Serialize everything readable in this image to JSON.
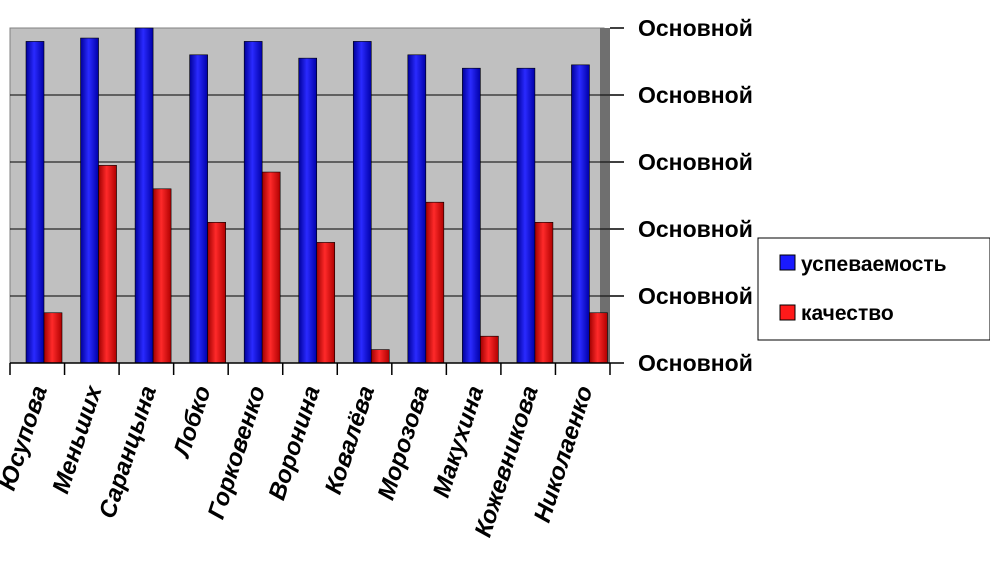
{
  "chart_data": {
    "type": "bar",
    "categories": [
      "Юсупова",
      "Меньших",
      "Саранцына",
      "Лобко",
      "Горковенко",
      "Воронина",
      "Ковалёва",
      "Морозова",
      "Макухина",
      "Кожевникова",
      "Николаенко"
    ],
    "series": [
      {
        "name": "успеваемость",
        "color": "#1a1aff",
        "values": [
          96,
          97,
          100,
          92,
          96,
          91,
          96,
          92,
          88,
          88,
          89
        ]
      },
      {
        "name": "качество",
        "color": "#ff1a1a",
        "values": [
          15,
          59,
          52,
          42,
          57,
          36,
          4,
          48,
          8,
          42,
          15
        ]
      }
    ],
    "ylim": [
      0,
      100
    ],
    "y_tick_labels": [
      "Основной",
      "Основной",
      "Основной",
      "Основной",
      "Основной",
      "Основной"
    ],
    "grid": true,
    "plot_background": "#c0c0c0",
    "legend_position": "right"
  }
}
